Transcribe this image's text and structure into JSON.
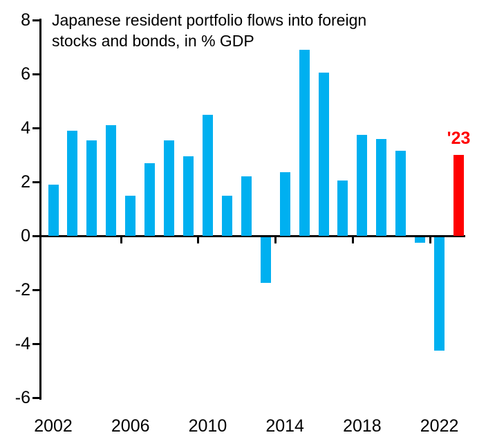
{
  "chart": {
    "title_line1": "Japanese resident portfolio flows into foreign",
    "title_line2": "stocks and bonds, in % GDP",
    "highlight_label": "'23"
  },
  "colors": {
    "bar_blue": "#00b0f0",
    "bar_red": "#ff0000",
    "axis": "#000000",
    "background": "#ffffff"
  },
  "chart_data": {
    "type": "bar",
    "title": "Japanese resident portfolio flows into foreign stocks and bonds, in % GDP",
    "ylabel": "% GDP",
    "x": [
      2002,
      2003,
      2004,
      2005,
      2006,
      2007,
      2008,
      2009,
      2010,
      2011,
      2012,
      2013,
      2014,
      2015,
      2016,
      2017,
      2018,
      2019,
      2020,
      2021,
      2022,
      2023
    ],
    "values": [
      1.9,
      3.9,
      3.55,
      4.1,
      1.5,
      2.7,
      3.55,
      2.95,
      4.5,
      1.5,
      2.2,
      -1.7,
      2.35,
      6.9,
      6.05,
      2.05,
      3.75,
      3.6,
      3.15,
      -0.2,
      -4.2,
      3.0
    ],
    "highlight_x": 2023,
    "highlight_annotation": "'23",
    "ylim": [
      -6,
      8
    ],
    "yticks": [
      8,
      6,
      4,
      2,
      0,
      -2,
      -4,
      -6
    ],
    "xtick_labels": [
      "2002",
      "2006",
      "2010",
      "2014",
      "2018",
      "2022"
    ],
    "xtick_label_years": [
      2002,
      2006,
      2010,
      2014,
      2018,
      2022
    ],
    "grid": false,
    "legend": "none"
  }
}
